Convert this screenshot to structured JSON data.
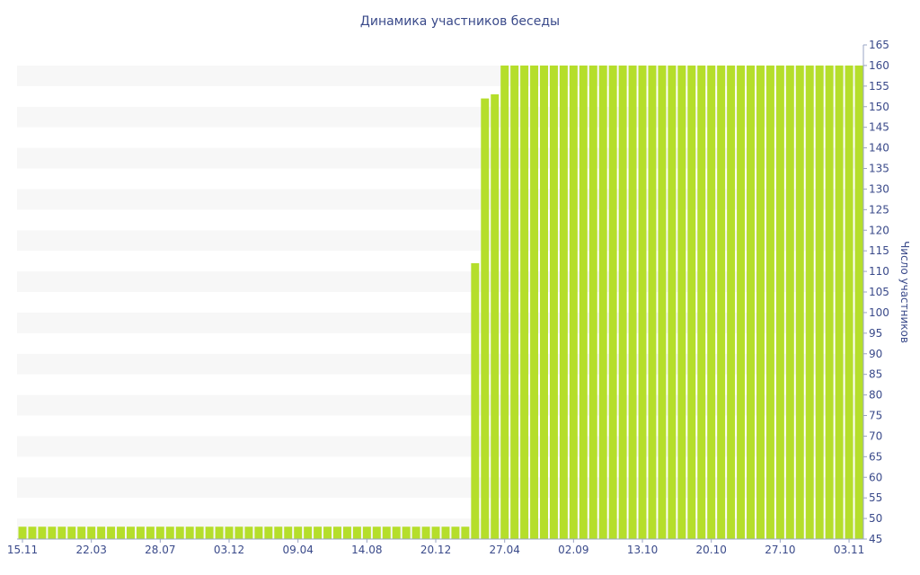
{
  "chart_data": {
    "type": "bar",
    "title": "Динамика участников беседы",
    "xlabel": "",
    "ylabel": "Число участников",
    "ylim": [
      45,
      165
    ],
    "y_ticks": [
      45,
      50,
      55,
      60,
      65,
      70,
      75,
      80,
      85,
      90,
      95,
      100,
      105,
      110,
      115,
      120,
      125,
      130,
      135,
      140,
      145,
      150,
      155,
      160,
      165
    ],
    "x_tick_labels": [
      "15.11",
      "22.03",
      "28.07",
      "03.12",
      "09.04",
      "14.08",
      "20.12",
      "27.04",
      "02.09",
      "13.10",
      "20.10",
      "27.10",
      "03.11"
    ],
    "y_axis_position": "right",
    "grid": "alternating horizontal bands",
    "legend": "none",
    "bar_color": "#b5de2b",
    "band_color": "#f7f7f7",
    "text_color": "#3a4a8a",
    "values": [
      48,
      48,
      48,
      48,
      48,
      48,
      48,
      48,
      48,
      48,
      48,
      48,
      48,
      48,
      48,
      48,
      48,
      48,
      48,
      48,
      48,
      48,
      48,
      48,
      48,
      48,
      48,
      48,
      48,
      48,
      48,
      48,
      48,
      48,
      48,
      48,
      48,
      48,
      48,
      48,
      48,
      48,
      48,
      48,
      48,
      48,
      112,
      152,
      153,
      160,
      160,
      160,
      160,
      160,
      160,
      160,
      160,
      160,
      160,
      160,
      160,
      160,
      160,
      160,
      160,
      160,
      160,
      160,
      160,
      160,
      160,
      160,
      160,
      160,
      160,
      160,
      160,
      160,
      160,
      160,
      160,
      160,
      160,
      160,
      160,
      160
    ]
  }
}
